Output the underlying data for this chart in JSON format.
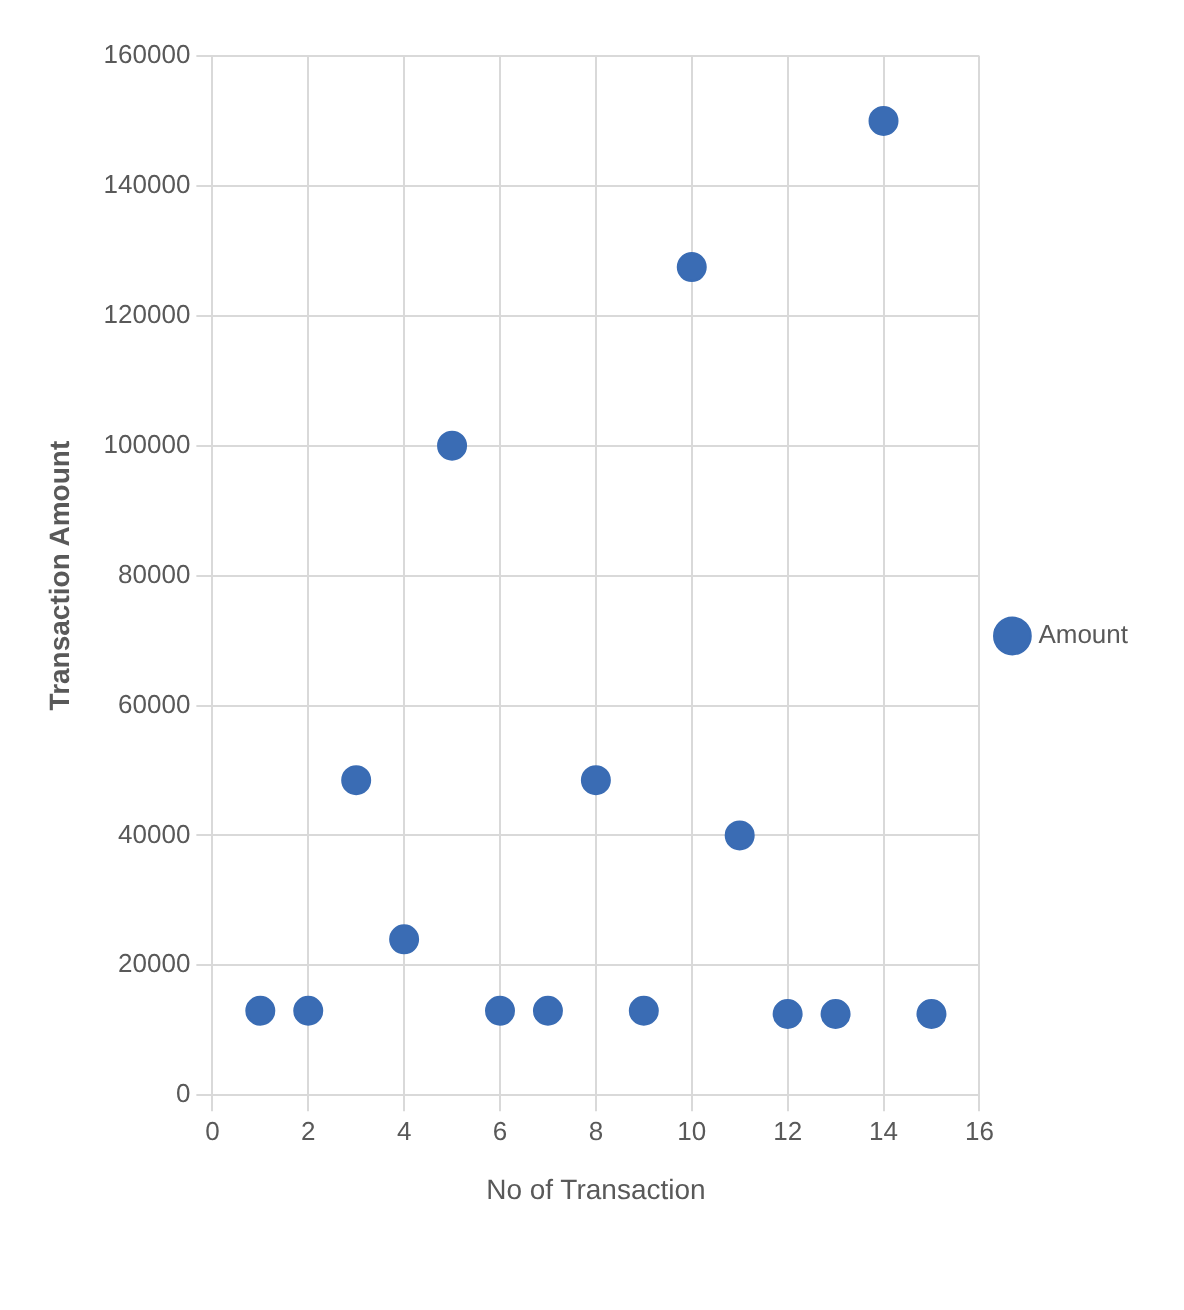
{
  "chart_data": {
    "type": "scatter",
    "xlabel": "No of Transaction",
    "ylabel": "Transaction Amount",
    "series": [
      {
        "name": "Amount",
        "color": "#3a6cb4",
        "x": [
          1,
          2,
          3,
          4,
          5,
          6,
          7,
          8,
          9,
          10,
          11,
          12,
          13,
          14,
          15
        ],
        "values": [
          13000,
          13000,
          48500,
          24000,
          100000,
          13000,
          13000,
          48500,
          13000,
          127500,
          40000,
          12500,
          12500,
          150000,
          12500
        ]
      }
    ],
    "xlim": [
      0,
      16
    ],
    "xticks": [
      0,
      2,
      4,
      6,
      8,
      10,
      12,
      14,
      16
    ],
    "ylim": [
      0,
      160000
    ],
    "yticks": [
      0,
      20000,
      40000,
      60000,
      80000,
      100000,
      120000,
      140000,
      160000
    ],
    "grid": true,
    "legend": "right",
    "marker": "circle"
  }
}
